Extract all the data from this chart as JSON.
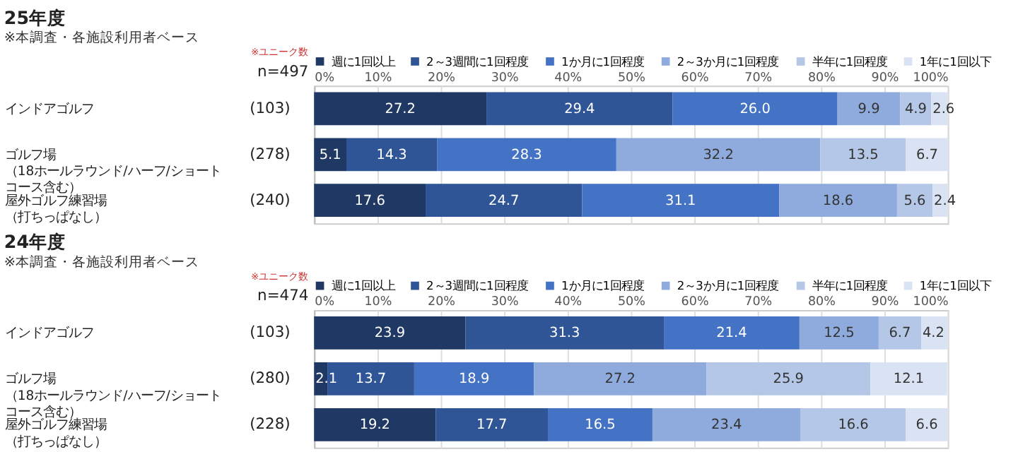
{
  "chart_data": [
    {
      "type": "bar",
      "orientation": "horizontal",
      "stacked": true,
      "title": "25年度",
      "subtitle": "※本調査・各施設利用者ベース",
      "categories": [
        "インドアゴルフ",
        "ゴルフ場（18ホールラウンド/ハーフ/ショートコース含む）",
        "屋外ゴルフ練習場（打ちっぱなし）"
      ],
      "series": [
        {
          "name": "週に1回以上",
          "color": "#1f3864",
          "values": [
            27.2,
            5.1,
            17.6
          ]
        },
        {
          "name": "2～3週間に1回程度",
          "color": "#2f5597",
          "values": [
            29.4,
            14.3,
            24.7
          ]
        },
        {
          "name": "1か月に1回程度",
          "color": "#4472c4",
          "values": [
            26.0,
            28.3,
            31.1
          ],
          "value_labels": [
            "26.0",
            "28.3",
            "31.1"
          ]
        },
        {
          "name": "2～3か月に1回程度",
          "color": "#8faadc",
          "values": [
            9.9,
            32.2,
            18.6
          ]
        },
        {
          "name": "半年に1回程度",
          "color": "#b4c7e7",
          "values": [
            4.9,
            13.5,
            5.6
          ]
        },
        {
          "name": "1年に1回以下",
          "color": "#dae3f3",
          "values": [
            2.6,
            6.7,
            2.4
          ]
        }
      ],
      "xlim": [
        0,
        100
      ],
      "xticks": [
        {
          "value": 0,
          "label": "0%"
        },
        {
          "value": 10,
          "label": "10%"
        },
        {
          "value": 20,
          "label": "20%"
        },
        {
          "value": 30,
          "label": "30%"
        },
        {
          "value": 40,
          "label": "40%"
        },
        {
          "value": 50,
          "label": "50%"
        },
        {
          "value": 60,
          "label": "60%"
        },
        {
          "value": 70,
          "label": "70%"
        },
        {
          "value": 80,
          "label": "80%"
        },
        {
          "value": 90,
          "label": "90%"
        },
        {
          "value": 100,
          "label": "100%"
        }
      ],
      "annotations": [
        "※ユニーク数",
        "n=497",
        "(103)",
        "(278)",
        "(240)"
      ],
      "data_labels": true,
      "grid": "x",
      "legend": "top"
    },
    {
      "type": "bar",
      "orientation": "horizontal",
      "stacked": true,
      "title": "24年度",
      "subtitle": "※本調査・各施設利用者ベース",
      "categories": [
        "インドアゴルフ",
        "ゴルフ場（18ホールラウンド/ハーフ/ショートコース含む）",
        "屋外ゴルフ練習場（打ちっぱなし）"
      ],
      "series": [
        {
          "name": "週に1回以上",
          "color": "#1f3864",
          "values": [
            23.9,
            2.1,
            19.2
          ]
        },
        {
          "name": "2～3週間に1回程度",
          "color": "#2f5597",
          "values": [
            31.3,
            13.7,
            17.7
          ]
        },
        {
          "name": "1か月に1回程度",
          "color": "#4472c4",
          "values": [
            21.4,
            18.9,
            16.5
          ]
        },
        {
          "name": "2～3か月に1回程度",
          "color": "#8faadc",
          "values": [
            12.5,
            27.2,
            23.4
          ]
        },
        {
          "name": "半年に1回程度",
          "color": "#b4c7e7",
          "values": [
            6.7,
            25.9,
            16.6
          ]
        },
        {
          "name": "1年に1回以下",
          "color": "#dae3f3",
          "values": [
            4.2,
            12.1,
            6.6
          ]
        }
      ],
      "xlim": [
        0,
        100
      ],
      "xticks": [
        {
          "value": 0,
          "label": "0%"
        },
        {
          "value": 10,
          "label": "10%"
        },
        {
          "value": 20,
          "label": "20%"
        },
        {
          "value": 30,
          "label": "30%"
        },
        {
          "value": 40,
          "label": "40%"
        },
        {
          "value": 50,
          "label": "50%"
        },
        {
          "value": 60,
          "label": "60%"
        },
        {
          "value": 70,
          "label": "70%"
        },
        {
          "value": 80,
          "label": "80%"
        },
        {
          "value": 90,
          "label": "90%"
        },
        {
          "value": 100,
          "label": "100%"
        }
      ],
      "annotations": [
        "※ユニーク数",
        "n=474",
        "(103)",
        "(280)",
        "(228)"
      ],
      "data_labels": true,
      "grid": "x",
      "legend": "top"
    }
  ]
}
